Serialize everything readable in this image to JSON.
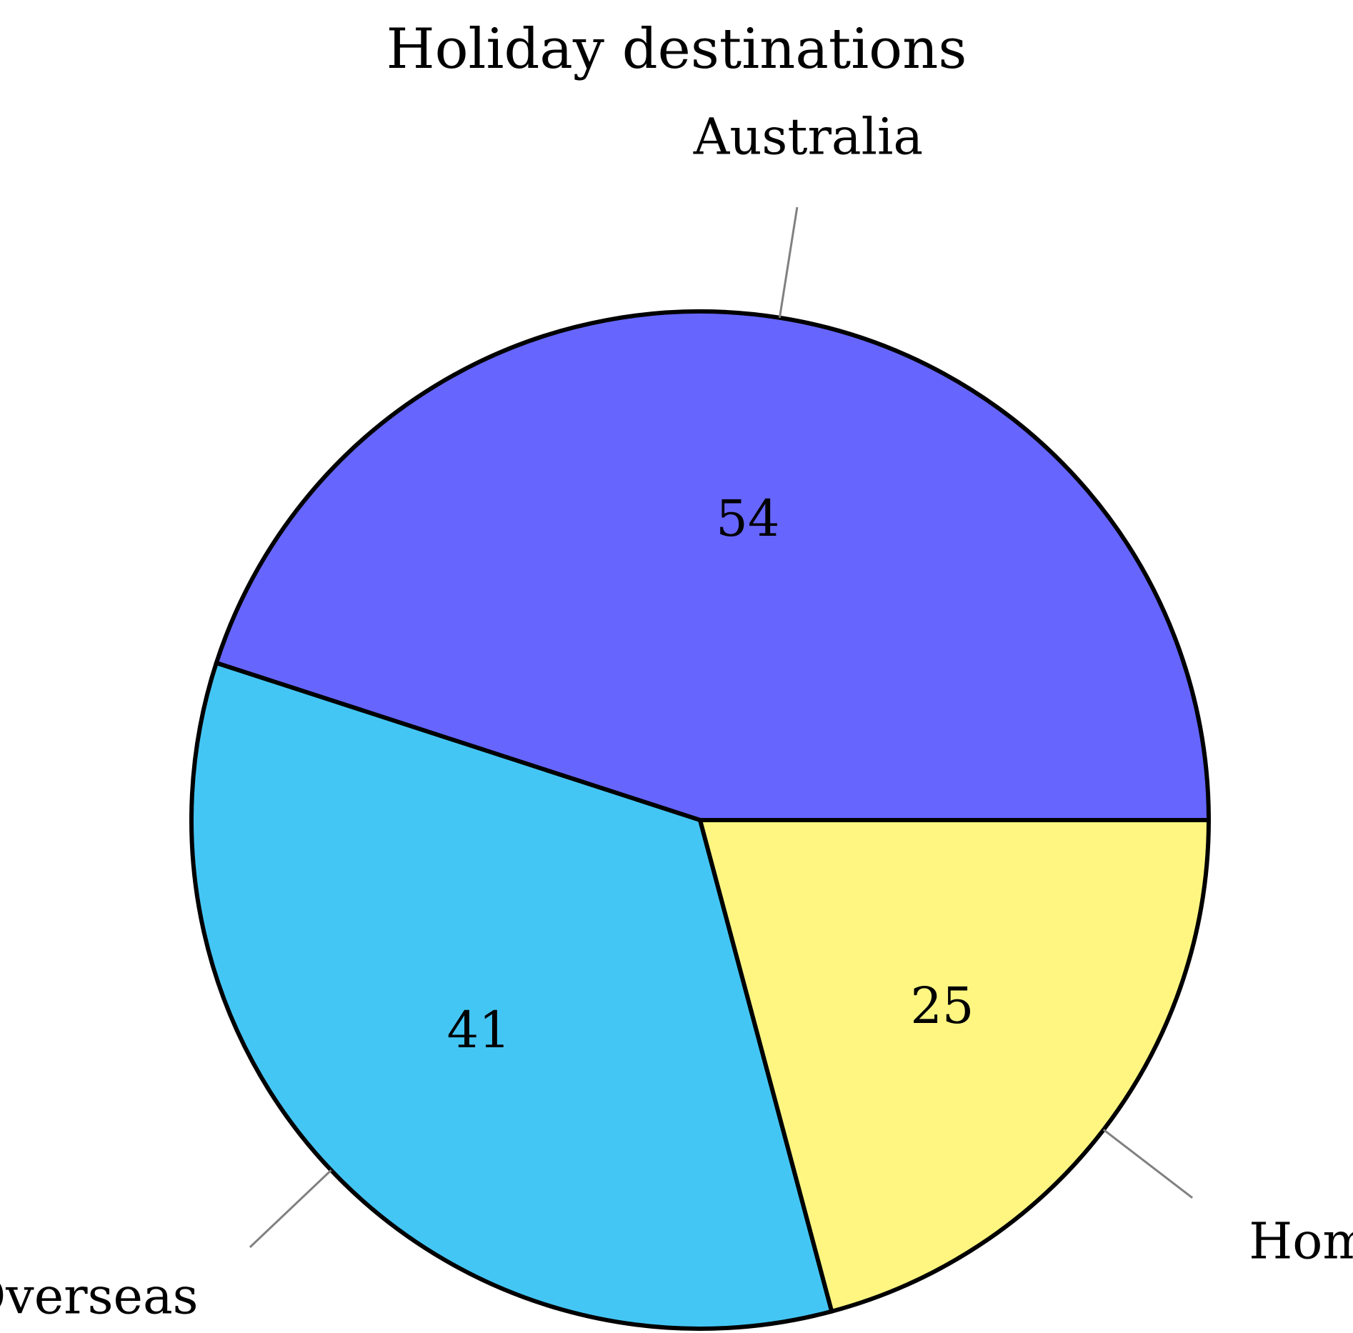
{
  "chart_data": {
    "type": "pie",
    "title": "Holiday destinations",
    "slices": [
      {
        "label": "Australia",
        "value": 54,
        "color": "#6666ff"
      },
      {
        "label": "Overseas",
        "value": 41,
        "color": "#44c6f4"
      },
      {
        "label": "Home",
        "value": 25,
        "color": "#fff682"
      }
    ],
    "start_angle_deg": 0,
    "direction": "counterclockwise",
    "legend": "none"
  }
}
